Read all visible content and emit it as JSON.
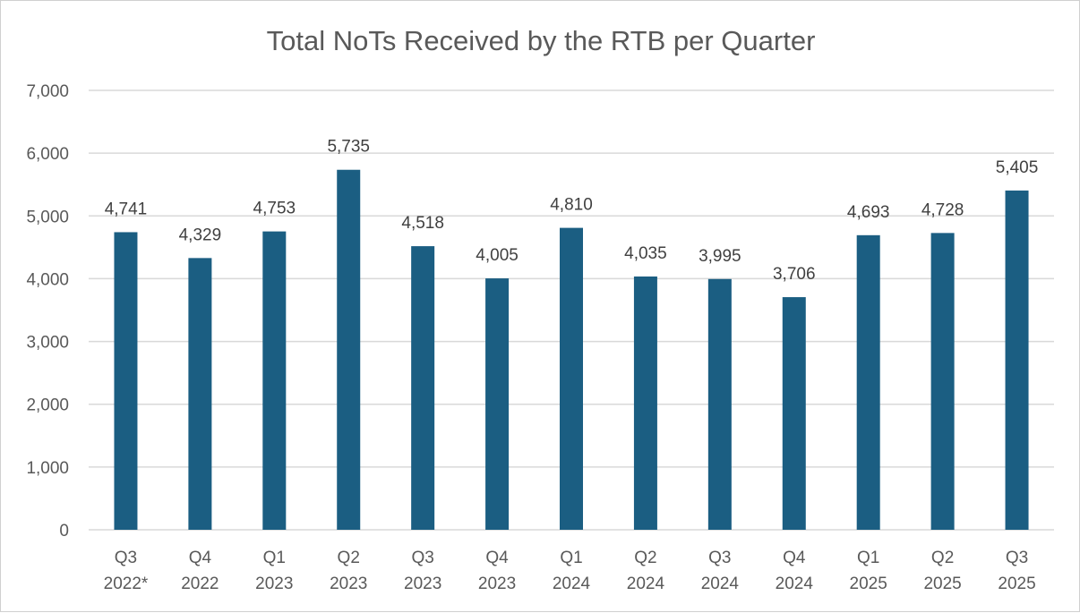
{
  "chart_data": {
    "type": "bar",
    "title": "Total NoTs Received by the RTB per Quarter",
    "xlabel": "",
    "ylabel": "",
    "ylim": [
      0,
      7000
    ],
    "yticks": [
      0,
      1000,
      2000,
      3000,
      4000,
      5000,
      6000,
      7000
    ],
    "ytick_labels": [
      "0",
      "1,000",
      "2,000",
      "3,000",
      "4,000",
      "5,000",
      "6,000",
      "7,000"
    ],
    "grid": true,
    "legend": "none",
    "bar_color": "#1b5e82",
    "categories": [
      [
        "Q3",
        "2022*"
      ],
      [
        "Q4",
        "2022"
      ],
      [
        "Q1",
        "2023"
      ],
      [
        "Q2",
        "2023"
      ],
      [
        "Q3",
        "2023"
      ],
      [
        "Q4",
        "2023"
      ],
      [
        "Q1",
        "2024"
      ],
      [
        "Q2",
        "2024"
      ],
      [
        "Q3",
        "2024"
      ],
      [
        "Q4",
        "2024"
      ],
      [
        "Q1",
        "2025"
      ],
      [
        "Q2",
        "2025"
      ],
      [
        "Q3",
        "2025"
      ]
    ],
    "values": [
      4741,
      4329,
      4753,
      5735,
      4518,
      4005,
      4810,
      4035,
      3995,
      3706,
      4693,
      4728,
      5405
    ],
    "value_labels": [
      "4,741",
      "4,329",
      "4,753",
      "5,735",
      "4,518",
      "4,005",
      "4,810",
      "4,035",
      "3,995",
      "3,706",
      "4,693",
      "4,728",
      "5,405"
    ]
  }
}
